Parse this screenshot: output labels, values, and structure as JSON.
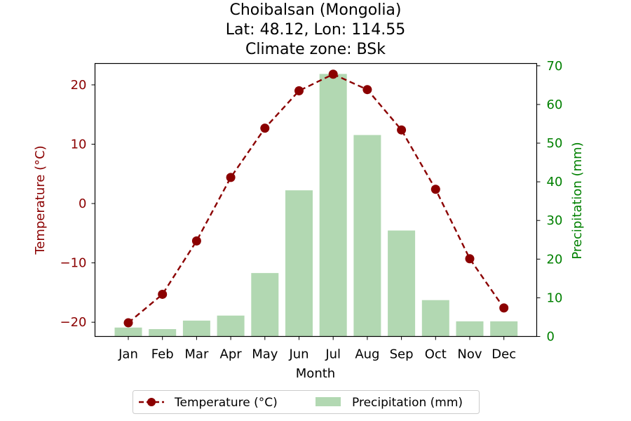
{
  "chart_data": {
    "type": "bar+line",
    "title": [
      "Choibalsan (Mongolia)",
      "Lat: 48.12, Lon: 114.55",
      "Climate zone: BSk"
    ],
    "xlabel": "Month",
    "categories": [
      "Jan",
      "Feb",
      "Mar",
      "Apr",
      "May",
      "Jun",
      "Jul",
      "Aug",
      "Sep",
      "Oct",
      "Nov",
      "Dec"
    ],
    "temperature": {
      "name": "Temperature (°C)",
      "axis_label": "Temperature (°C)",
      "color": "#8b0000",
      "ylim": [
        -22.4,
        23.6
      ],
      "ticks": [
        -20,
        -10,
        0,
        10,
        20
      ],
      "tick_labels": [
        "−20",
        "−10",
        "0",
        "10",
        "20"
      ],
      "values": [
        -20.1,
        -15.3,
        -6.3,
        4.4,
        12.7,
        19.0,
        21.8,
        19.2,
        12.4,
        2.4,
        -9.3,
        -17.6
      ]
    },
    "precipitation": {
      "name": "Precipitation (mm)",
      "axis_label": "Precipitation (mm)",
      "color": "#008000",
      "bar_color": "#b2d8b2",
      "ylim": [
        0,
        70.6
      ],
      "ticks": [
        0,
        10,
        20,
        30,
        40,
        50,
        60,
        70
      ],
      "tick_labels": [
        "0",
        "10",
        "20",
        "30",
        "40",
        "50",
        "60",
        "70"
      ],
      "values": [
        2.3,
        1.9,
        4.1,
        5.4,
        16.4,
        37.8,
        67.9,
        52.1,
        27.4,
        9.4,
        3.9,
        3.9
      ]
    },
    "legend_position": "bottom-center",
    "grid": false
  }
}
